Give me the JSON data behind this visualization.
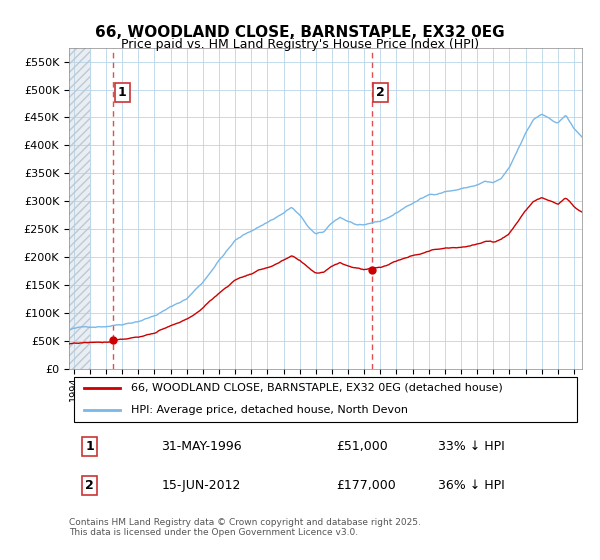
{
  "title": "66, WOODLAND CLOSE, BARNSTAPLE, EX32 0EG",
  "subtitle": "Price paid vs. HM Land Registry's House Price Index (HPI)",
  "ylim": [
    0,
    575000
  ],
  "yticks": [
    0,
    50000,
    100000,
    150000,
    200000,
    250000,
    300000,
    350000,
    400000,
    450000,
    500000,
    550000
  ],
  "legend_line1": "66, WOODLAND CLOSE, BARNSTAPLE, EX32 0EG (detached house)",
  "legend_line2": "HPI: Average price, detached house, North Devon",
  "annotation1_label": "1",
  "annotation1_date": "31-MAY-1996",
  "annotation1_price": "£51,000",
  "annotation1_hpi": "33% ↓ HPI",
  "annotation1_year": 1996.42,
  "annotation1_value": 51000,
  "annotation2_label": "2",
  "annotation2_date": "15-JUN-2012",
  "annotation2_price": "£177,000",
  "annotation2_hpi": "36% ↓ HPI",
  "annotation2_year": 2012.46,
  "annotation2_value": 177000,
  "footer": "Contains HM Land Registry data © Crown copyright and database right 2025.\nThis data is licensed under the Open Government Licence v3.0.",
  "hpi_color": "#7ab8e8",
  "price_color": "#cc0000",
  "vline_color": "#e05050",
  "point_color": "#cc0000",
  "background_color": "#ffffff",
  "grid_color": "#b8d4e8",
  "hatch_bg": "#e8eef4",
  "xlim_left": 1993.7,
  "xlim_right": 2025.5
}
